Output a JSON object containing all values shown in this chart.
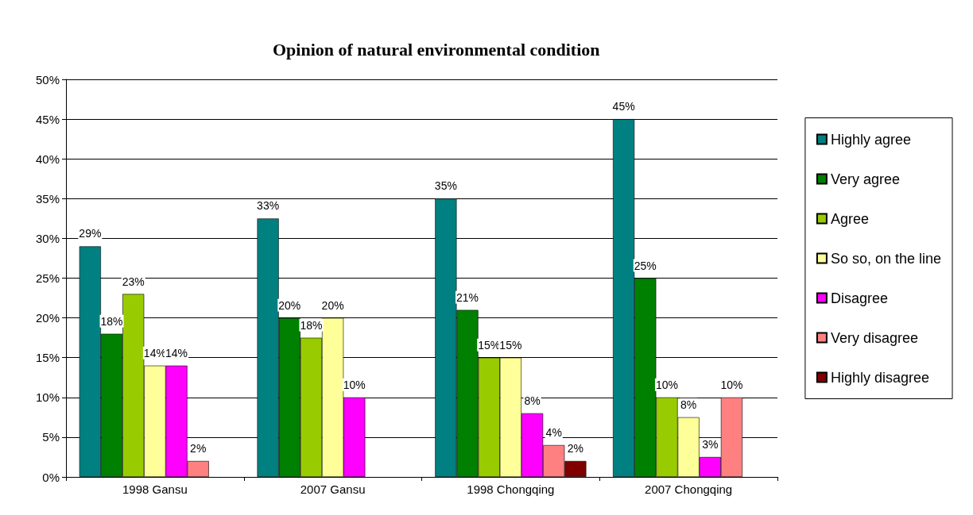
{
  "chart_data": {
    "type": "bar",
    "title": "Opinion of natural environmental condition",
    "categories": [
      "1998 Gansu",
      "2007 Gansu",
      "1998 Chongqing",
      "2007 Chongqing"
    ],
    "series": [
      {
        "name": "Highly agree",
        "color": "#008080",
        "values": [
          29,
          32.5,
          35,
          45
        ],
        "value_labels": [
          "29%",
          "33%",
          "35%",
          "45%"
        ]
      },
      {
        "name": "Very agree",
        "color": "#008000",
        "values": [
          18,
          20,
          21,
          25
        ],
        "value_labels": [
          "18%",
          "20%",
          "21%",
          "25%"
        ]
      },
      {
        "name": "Agree",
        "color": "#99cc00",
        "values": [
          23,
          17.5,
          15,
          10
        ],
        "value_labels": [
          "23%",
          "18%",
          "15%",
          "10%"
        ]
      },
      {
        "name": "So so, on the line",
        "color": "#ffff99",
        "values": [
          14,
          20,
          15,
          7.5
        ],
        "value_labels": [
          "14%",
          "20%",
          "15%",
          "8%"
        ]
      },
      {
        "name": "Disagree",
        "color": "#ff00ff",
        "values": [
          14,
          10,
          8,
          2.5
        ],
        "value_labels": [
          "14%",
          "10%",
          "8%",
          "3%"
        ]
      },
      {
        "name": "Very disagree",
        "color": "#ff8080",
        "values": [
          2,
          null,
          4,
          10
        ],
        "value_labels": [
          "2%",
          null,
          "4%",
          "10%"
        ]
      },
      {
        "name": "Highly disagree",
        "color": "#800000",
        "values": [
          null,
          null,
          2,
          null
        ],
        "value_labels": [
          null,
          null,
          "2%",
          null
        ]
      }
    ],
    "ylim": [
      0,
      50
    ],
    "yticks": [
      {
        "value": 0,
        "label": "0%"
      },
      {
        "value": 5,
        "label": "5%"
      },
      {
        "value": 10,
        "label": "10%"
      },
      {
        "value": 15,
        "label": "15%"
      },
      {
        "value": 20,
        "label": "20%"
      },
      {
        "value": 25,
        "label": "25%"
      },
      {
        "value": 30,
        "label": "30%"
      },
      {
        "value": 35,
        "label": "35%"
      },
      {
        "value": 40,
        "label": "40%"
      },
      {
        "value": 45,
        "label": "45%"
      },
      {
        "value": 50,
        "label": "50%"
      }
    ],
    "grid": "y",
    "legend": "right"
  }
}
